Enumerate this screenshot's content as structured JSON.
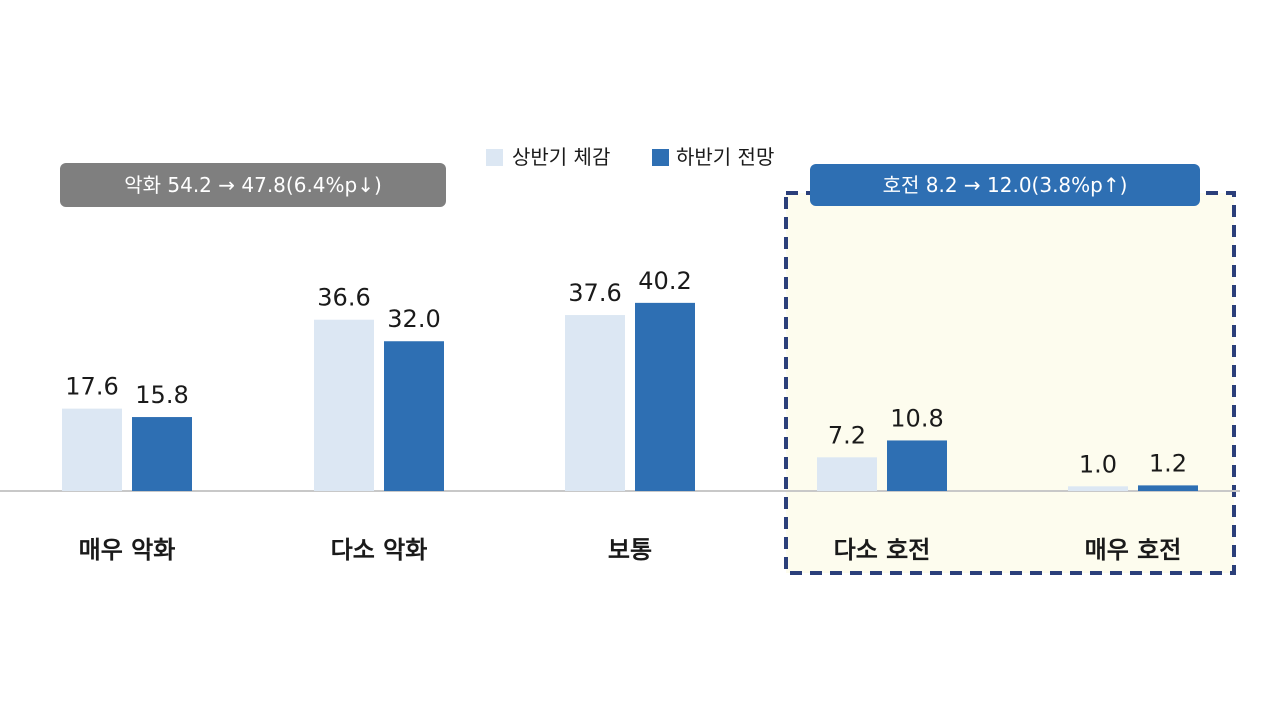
{
  "chart_data": {
    "type": "bar",
    "categories": [
      "매우 악화",
      "다소 악화",
      "보통",
      "다소 호전",
      "매우 호전"
    ],
    "series": [
      {
        "name": "상반기 체감",
        "values": [
          17.6,
          36.6,
          37.6,
          7.2,
          1.0
        ],
        "labels": [
          "17.6",
          "36.6",
          "37.6",
          "7.2",
          "1.0"
        ]
      },
      {
        "name": "하반기 전망",
        "values": [
          15.8,
          32.0,
          40.2,
          10.8,
          1.2
        ],
        "labels": [
          "15.8",
          "32.0",
          "40.2",
          "10.8",
          "1.2"
        ]
      }
    ],
    "ylim": [
      0,
      45
    ],
    "legend_position": "top-center",
    "grid": false,
    "annotations": [
      {
        "text": "악화 54.2 → 47.8(6.4%p↓)",
        "style": "gray-badge",
        "applies_to": [
          "매우 악화",
          "다소 악화"
        ]
      },
      {
        "text": "호전 8.2 → 12.0(3.8%p↑)",
        "style": "blue-badge",
        "applies_to": [
          "다소 호전",
          "매우 호전"
        ]
      }
    ]
  },
  "colors": {
    "series_1": "#dce7f3",
    "series_2": "#2e6fb3",
    "gray_badge": "#7f7f7f",
    "blue_badge": "#2e6fb3",
    "highlight_fill": "#fdfcee",
    "highlight_border": "#2b3f7a",
    "axis": "#c8c8c8"
  }
}
